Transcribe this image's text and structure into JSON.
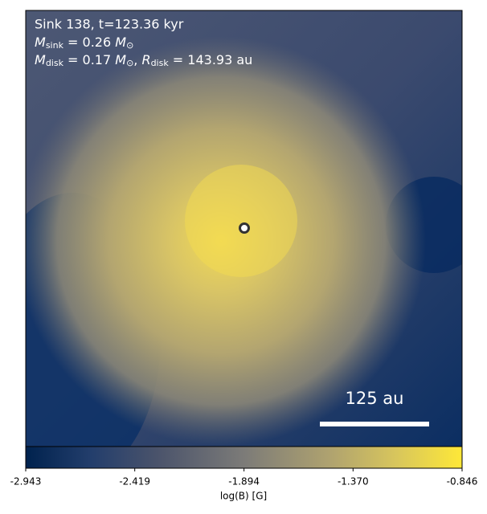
{
  "chart_data": {
    "type": "heatmap",
    "title": "Sink 138, t=123.36 kyr",
    "annotations": [
      [
        "M",
        "sink",
        " = 0.26 ",
        "M",
        "⊙"
      ],
      [
        "M",
        "disk",
        " = 0.17 ",
        "M",
        "⊙",
        ", ",
        "R",
        "disk",
        " = 143.93 au"
      ]
    ],
    "scale_label": "125 au",
    "colorbar_label": "log(B) [G]",
    "clim": [
      -2.943,
      -0.846
    ],
    "cticks": [
      -2.943,
      -2.419,
      -1.894,
      {
        "value": -1.37,
        "label": "-1.370"
      },
      -0.846
    ],
    "colormap": "cividis"
  }
}
